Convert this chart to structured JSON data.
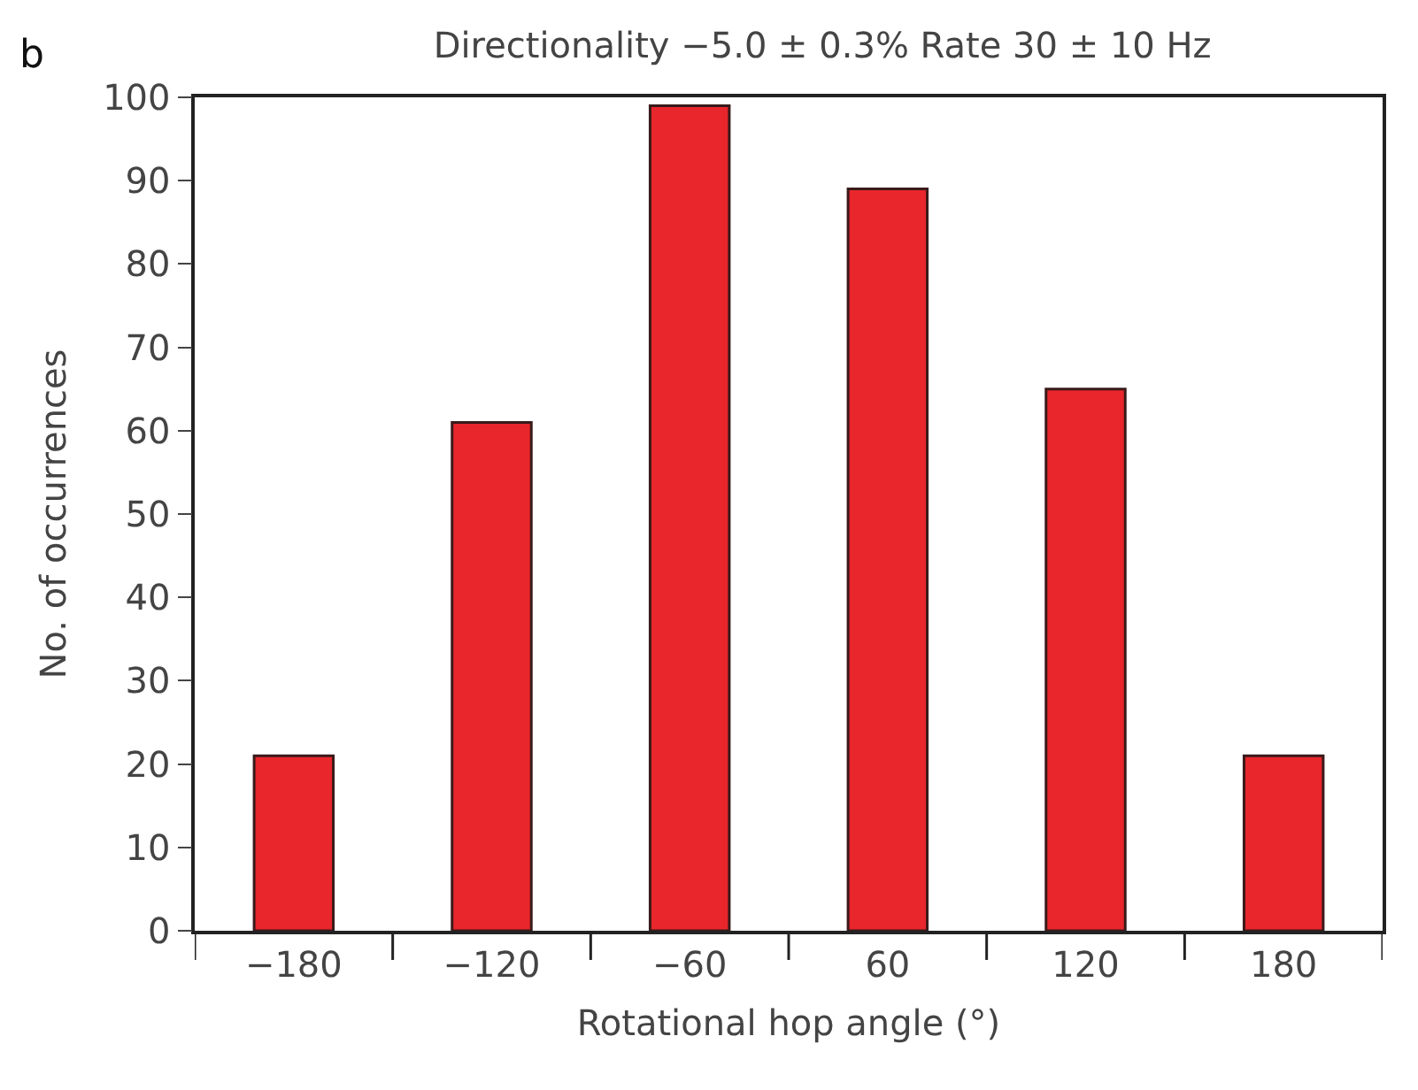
{
  "chart_data": {
    "type": "bar",
    "title": "Directionality −5.0 ± 0.3% Rate 30 ± 10 Hz",
    "xlabel": "Rotational hop angle (°)",
    "ylabel": "No. of occurrences",
    "annotations": [
      "b"
    ],
    "categories": [
      "−180",
      "−120",
      "−60",
      "60",
      "120",
      "180"
    ],
    "values": [
      21,
      61,
      99,
      89,
      65,
      21
    ],
    "color": "#e8262b",
    "ylim": [
      0,
      100
    ],
    "yticks": [
      0,
      10,
      20,
      30,
      40,
      50,
      60,
      70,
      80,
      90,
      100
    ]
  }
}
